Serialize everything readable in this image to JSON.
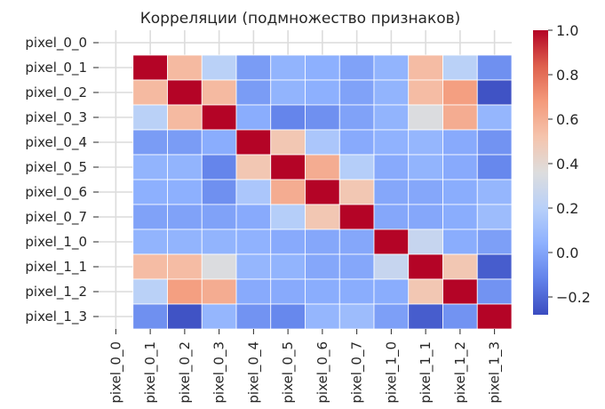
{
  "chart_data": {
    "type": "heatmap",
    "title": "Корреляции (подмножество признаков)",
    "xlabel": "",
    "ylabel": "",
    "labels": [
      "pixel_0_0",
      "pixel_0_1",
      "pixel_0_2",
      "pixel_0_3",
      "pixel_0_4",
      "pixel_0_5",
      "pixel_0_6",
      "pixel_0_7",
      "pixel_1_0",
      "pixel_1_1",
      "pixel_1_2",
      "pixel_1_3"
    ],
    "matrix": [
      [
        null,
        null,
        null,
        null,
        null,
        null,
        null,
        null,
        null,
        null,
        null,
        null
      ],
      [
        null,
        1.0,
        0.56,
        0.21,
        -0.03,
        0.06,
        0.04,
        -0.01,
        0.06,
        0.55,
        0.21,
        -0.07
      ],
      [
        null,
        0.56,
        1.0,
        0.56,
        -0.03,
        0.06,
        0.04,
        -0.01,
        0.06,
        0.55,
        0.66,
        -0.26
      ],
      [
        null,
        0.21,
        0.56,
        1.0,
        0.03,
        -0.11,
        -0.07,
        -0.01,
        0.06,
        0.35,
        0.61,
        0.07
      ],
      [
        null,
        -0.03,
        -0.03,
        0.03,
        1.0,
        0.5,
        0.15,
        0.02,
        0.05,
        0.07,
        0.02,
        -0.06
      ],
      [
        null,
        0.06,
        0.06,
        -0.11,
        0.5,
        1.0,
        0.61,
        0.19,
        0.02,
        0.06,
        0.02,
        -0.1
      ],
      [
        null,
        0.04,
        0.04,
        -0.07,
        0.15,
        0.61,
        1.0,
        0.5,
        0.01,
        0.01,
        0.03,
        0.07
      ],
      [
        null,
        -0.01,
        -0.01,
        -0.01,
        0.02,
        0.19,
        0.5,
        1.0,
        0.01,
        0.01,
        0.03,
        0.1
      ],
      [
        null,
        0.06,
        0.06,
        0.06,
        0.05,
        0.02,
        0.01,
        0.01,
        1.0,
        0.26,
        0.03,
        -0.02
      ],
      [
        null,
        0.55,
        0.55,
        0.35,
        0.07,
        0.06,
        0.01,
        0.01,
        0.26,
        1.0,
        0.5,
        -0.23
      ],
      [
        null,
        0.21,
        0.66,
        0.61,
        0.02,
        0.02,
        0.03,
        0.03,
        0.03,
        0.5,
        1.0,
        -0.06
      ],
      [
        null,
        -0.07,
        -0.26,
        0.07,
        -0.06,
        -0.1,
        0.07,
        0.1,
        -0.02,
        -0.23,
        -0.06,
        1.0
      ]
    ],
    "vmin": -0.28,
    "vmax": 1.0,
    "colormap": "coolwarm",
    "colorbar_ticks": [
      -0.2,
      0.0,
      0.2,
      0.4,
      0.6,
      0.8,
      1.0
    ],
    "colorbar_tick_labels": [
      "−0.2",
      "0.0",
      "0.2",
      "0.4",
      "0.6",
      "0.8",
      "1.0"
    ],
    "missing_color": "#ffffff",
    "grid_color": "#dcdcdc"
  }
}
